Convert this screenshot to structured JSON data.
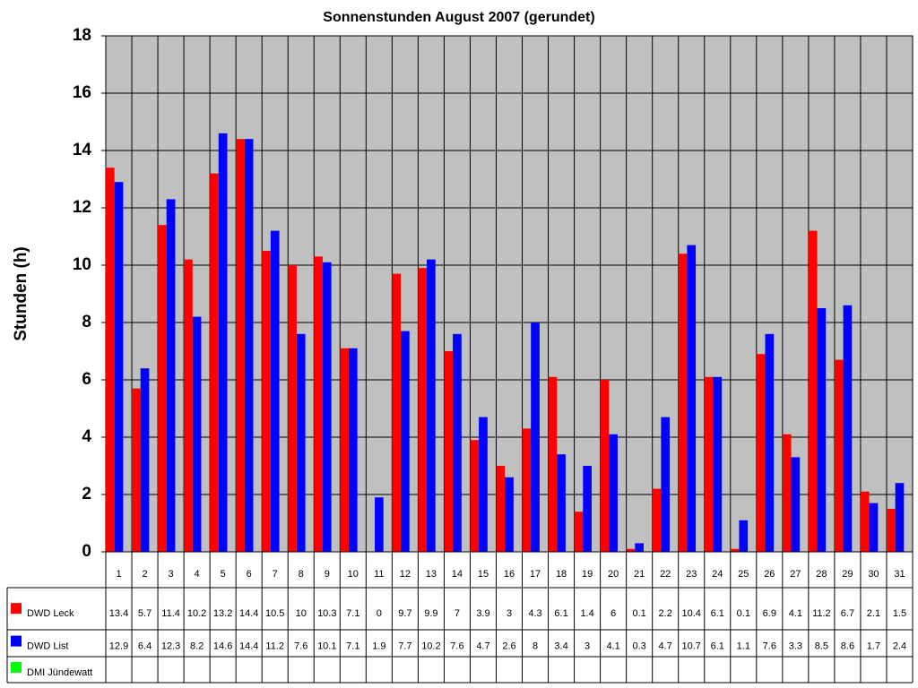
{
  "chart_data": {
    "type": "bar",
    "title": "Sonnenstunden August 2007 (gerundet)",
    "y_label": "Stunden (h)",
    "categories": [
      "1",
      "2",
      "3",
      "4",
      "5",
      "6",
      "7",
      "8",
      "9",
      "10",
      "11",
      "12",
      "13",
      "14",
      "15",
      "16",
      "17",
      "18",
      "19",
      "20",
      "21",
      "22",
      "23",
      "24",
      "25",
      "26",
      "27",
      "28",
      "29",
      "30",
      "31"
    ],
    "series": [
      {
        "name": "DWD Leck",
        "color": "#ff0000",
        "values": [
          13.4,
          5.7,
          11.4,
          10.2,
          13.2,
          14.4,
          10.5,
          10,
          10.3,
          7.1,
          0,
          9.7,
          9.9,
          7,
          3.9,
          3,
          4.3,
          6.1,
          1.4,
          6,
          0.1,
          2.2,
          10.4,
          6.1,
          0.1,
          6.9,
          4.1,
          11.2,
          6.7,
          2.1,
          1.5
        ]
      },
      {
        "name": "DWD List",
        "color": "#0000ff",
        "values": [
          12.9,
          6.4,
          12.3,
          8.2,
          14.6,
          14.4,
          11.2,
          7.6,
          10.1,
          7.1,
          1.9,
          7.7,
          10.2,
          7.6,
          4.7,
          2.6,
          8,
          3.4,
          3,
          4.1,
          0.3,
          4.7,
          10.7,
          6.1,
          1.1,
          7.6,
          3.3,
          8.5,
          8.6,
          1.7,
          2.4
        ]
      },
      {
        "name": "DMI Jündewatt",
        "color": "#00ff00",
        "values": [
          null,
          null,
          null,
          null,
          null,
          null,
          null,
          null,
          null,
          null,
          null,
          null,
          null,
          null,
          null,
          null,
          null,
          null,
          null,
          null,
          null,
          null,
          null,
          null,
          null,
          null,
          null,
          null,
          null,
          null,
          null
        ]
      }
    ],
    "ylim": [
      0,
      18
    ],
    "yticks": [
      0,
      2,
      4,
      6,
      8,
      10,
      12,
      14,
      16,
      18
    ],
    "grid": true,
    "background": "#c0c0c0"
  }
}
